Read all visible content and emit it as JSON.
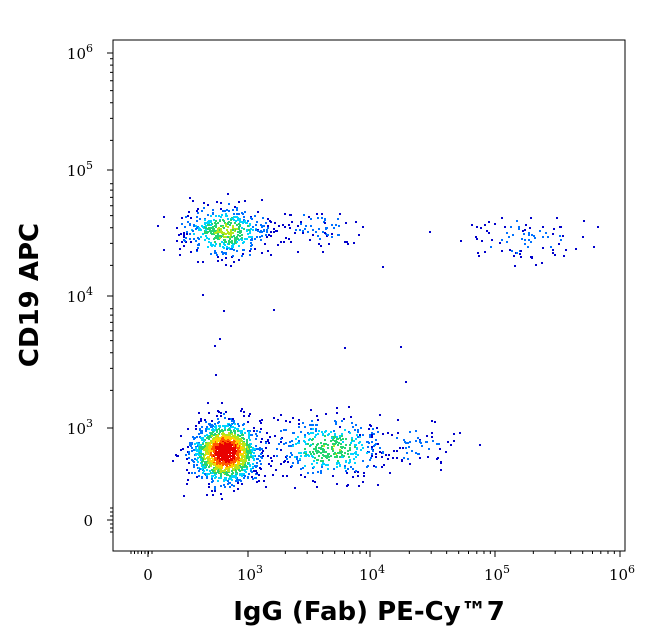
{
  "chart_data": {
    "type": "scatter",
    "title": "",
    "xlabel": "IgG (Fab) PE-Cy™7",
    "ylabel": "CD19 APC",
    "x_scale": "biexponential",
    "y_scale": "biexponential",
    "grid": false,
    "legend": "none",
    "x_ticks": [
      {
        "base": "0",
        "exp": ""
      },
      {
        "base": "10",
        "exp": "3"
      },
      {
        "base": "10",
        "exp": "4"
      },
      {
        "base": "10",
        "exp": "5"
      },
      {
        "base": "10",
        "exp": "6"
      }
    ],
    "y_ticks": [
      {
        "base": "0",
        "exp": ""
      },
      {
        "base": "10",
        "exp": "3"
      },
      {
        "base": "10",
        "exp": "4"
      },
      {
        "base": "10",
        "exp": "5"
      },
      {
        "base": "10",
        "exp": "6"
      }
    ],
    "density_colors": [
      "#0000cc",
      "#0072ff",
      "#00d4ff",
      "#25d470",
      "#b4e61a",
      "#ffd000",
      "#ff5a00",
      "#e80000"
    ],
    "populations": [
      {
        "x_center": 650,
        "y_center": 650,
        "x_spread_decades": 0.13,
        "y_spread_decades": 0.12,
        "count": 1500,
        "peak_density": 1.0
      },
      {
        "x_center": 4500,
        "y_center": 700,
        "x_spread_decades": 0.22,
        "y_spread_decades": 0.12,
        "count": 420,
        "peak_density": 0.45
      },
      {
        "x_center": 22000,
        "y_center": 750,
        "x_spread_decades": 0.18,
        "y_spread_decades": 0.09,
        "count": 70,
        "peak_density": 0.12
      },
      {
        "x_center": 650,
        "y_center": 38000,
        "x_spread_decades": 0.17,
        "y_spread_decades": 0.1,
        "count": 480,
        "peak_density": 0.5
      },
      {
        "x_center": 3500,
        "y_center": 40000,
        "x_spread_decades": 0.2,
        "y_spread_decades": 0.09,
        "count": 80,
        "peak_density": 0.12
      },
      {
        "x_center": 160000,
        "y_center": 33000,
        "x_spread_decades": 0.22,
        "y_spread_decades": 0.1,
        "count": 90,
        "peak_density": 0.14
      }
    ]
  }
}
